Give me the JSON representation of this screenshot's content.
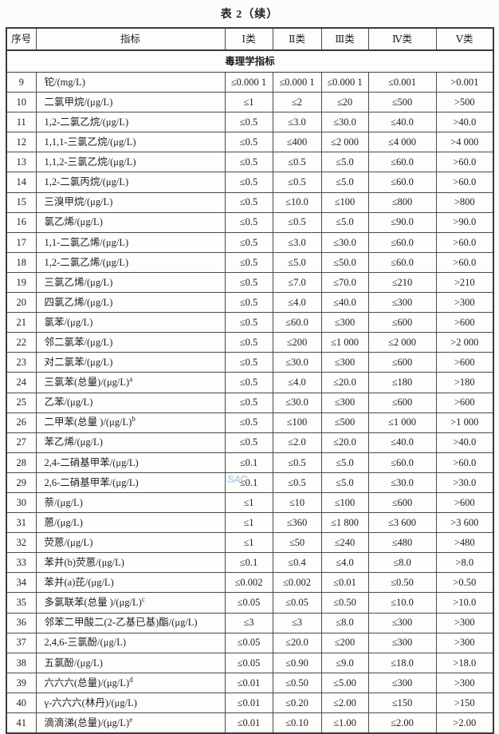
{
  "title": "表 2（续）",
  "watermark": "SAC",
  "colors": {
    "page_background": "#fcfcfb",
    "border": "#3a3a3a",
    "text": "#1e1e1e",
    "watermark_blue": "#8fb6dd"
  },
  "table": {
    "columns": [
      "序号",
      "指标",
      "Ⅰ类",
      "Ⅱ类",
      "Ⅲ类",
      "Ⅳ类",
      "Ⅴ类"
    ],
    "section": "毒理学指标",
    "rows": [
      {
        "no": "9",
        "name": "铊/(mg/L)",
        "sup": "",
        "values": [
          "≤0.000 1",
          "≤0.000 1",
          "≤0.000 1",
          "≤0.001",
          ">0.001"
        ]
      },
      {
        "no": "10",
        "name": "二氯甲烷/(μg/L)",
        "sup": "",
        "values": [
          "≤1",
          "≤2",
          "≤20",
          "≤500",
          ">500"
        ]
      },
      {
        "no": "11",
        "name": "1,2-二氯乙烷/(μg/L)",
        "sup": "",
        "values": [
          "≤0.5",
          "≤3.0",
          "≤30.0",
          "≤40.0",
          ">40.0"
        ]
      },
      {
        "no": "12",
        "name": "1,1,1-三氯乙烷/(μg/L)",
        "sup": "",
        "values": [
          "≤0.5",
          "≤400",
          "≤2 000",
          "≤4 000",
          ">4 000"
        ]
      },
      {
        "no": "13",
        "name": "1,1,2-三氯乙烷/(μg/L)",
        "sup": "",
        "values": [
          "≤0.5",
          "≤0.5",
          "≤5.0",
          "≤60.0",
          ">60.0"
        ]
      },
      {
        "no": "14",
        "name": "1,2-二氯丙烷/(μg/L)",
        "sup": "",
        "values": [
          "≤0.5",
          "≤0.5",
          "≤5.0",
          "≤60.0",
          ">60.0"
        ]
      },
      {
        "no": "15",
        "name": "三溴甲烷/(μg/L)",
        "sup": "",
        "values": [
          "≤0.5",
          "≤10.0",
          "≤100",
          "≤800",
          ">800"
        ]
      },
      {
        "no": "16",
        "name": "氯乙烯/(μg/L)",
        "sup": "",
        "values": [
          "≤0.5",
          "≤0.5",
          "≤5.0",
          "≤90.0",
          ">90.0"
        ]
      },
      {
        "no": "17",
        "name": "1,1-二氯乙烯/(μg/L)",
        "sup": "",
        "values": [
          "≤0.5",
          "≤3.0",
          "≤30.0",
          "≤60.0",
          ">60.0"
        ]
      },
      {
        "no": "18",
        "name": "1,2-二氯乙烯/(μg/L)",
        "sup": "",
        "values": [
          "≤0.5",
          "≤5.0",
          "≤50.0",
          "≤60.0",
          ">60.0"
        ]
      },
      {
        "no": "19",
        "name": "三氯乙烯/(μg/L)",
        "sup": "",
        "values": [
          "≤0.5",
          "≤7.0",
          "≤70.0",
          "≤210",
          ">210"
        ]
      },
      {
        "no": "20",
        "name": "四氯乙烯/(μg/L)",
        "sup": "",
        "values": [
          "≤0.5",
          "≤4.0",
          "≤40.0",
          "≤300",
          ">300"
        ]
      },
      {
        "no": "21",
        "name": "氯苯/(μg/L)",
        "sup": "",
        "values": [
          "≤0.5",
          "≤60.0",
          "≤300",
          "≤600",
          ">600"
        ]
      },
      {
        "no": "22",
        "name": "邻二氯苯/(μg/L)",
        "sup": "",
        "values": [
          "≤0.5",
          "≤200",
          "≤1 000",
          "≤2 000",
          ">2 000"
        ]
      },
      {
        "no": "23",
        "name": "对二氯苯/(μg/L)",
        "sup": "",
        "values": [
          "≤0.5",
          "≤30.0",
          "≤300",
          "≤600",
          ">600"
        ]
      },
      {
        "no": "24",
        "name": "三氯苯(总量)/(μg/L)",
        "sup": "a",
        "values": [
          "≤0.5",
          "≤4.0",
          "≤20.0",
          "≤180",
          ">180"
        ]
      },
      {
        "no": "25",
        "name": "乙苯/(μg/L)",
        "sup": "",
        "values": [
          "≤0.5",
          "≤30.0",
          "≤300",
          "≤600",
          ">600"
        ]
      },
      {
        "no": "26",
        "name": "二甲苯(总量 )/(μg/L)",
        "sup": "b",
        "values": [
          "≤0.5",
          "≤100",
          "≤500",
          "≤1 000",
          ">1 000"
        ]
      },
      {
        "no": "27",
        "name": "苯乙烯/(μg/L)",
        "sup": "",
        "values": [
          "≤0.5",
          "≤2.0",
          "≤20.0",
          "≤40.0",
          ">40.0"
        ]
      },
      {
        "no": "28",
        "name": "2,4-二硝基甲苯/(μg/L)",
        "sup": "",
        "values": [
          "≤0.1",
          "≤0.5",
          "≤5.0",
          "≤60.0",
          ">60.0"
        ]
      },
      {
        "no": "29",
        "name": "2,6-二硝基甲苯/(μg/L)",
        "sup": "",
        "values": [
          "≤0.1",
          "≤0.5",
          "≤5.0",
          "≤30.0",
          ">30.0"
        ]
      },
      {
        "no": "30",
        "name": "萘/(μg/L)",
        "sup": "",
        "values": [
          "≤1",
          "≤10",
          "≤100",
          "≤600",
          ">600"
        ]
      },
      {
        "no": "31",
        "name": "蒽/(μg/L)",
        "sup": "",
        "values": [
          "≤1",
          "≤360",
          "≤1 800",
          "≤3 600",
          ">3 600"
        ]
      },
      {
        "no": "32",
        "name": "荧蒽/(μg/L)",
        "sup": "",
        "values": [
          "≤1",
          "≤50",
          "≤240",
          "≤480",
          ">480"
        ]
      },
      {
        "no": "33",
        "name": "苯并(b)荧蒽/(μg/L)",
        "sup": "",
        "values": [
          "≤0.1",
          "≤0.4",
          "≤4.0",
          "≤8.0",
          ">8.0"
        ]
      },
      {
        "no": "34",
        "name": "苯并(a)芘/(μg/L)",
        "sup": "",
        "values": [
          "≤0.002",
          "≤0.002",
          "≤0.01",
          "≤0.50",
          ">0.50"
        ]
      },
      {
        "no": "35",
        "name": "多氯联苯(总量 )/(μg/L)",
        "sup": "c",
        "values": [
          "≤0.05",
          "≤0.05",
          "≤0.50",
          "≤10.0",
          ">10.0"
        ]
      },
      {
        "no": "36",
        "name": "邻苯二甲酸二(2-乙基已基)酯/(μg/L)",
        "sup": "",
        "values": [
          "≤3",
          "≤3",
          "≤8.0",
          "≤300",
          ">300"
        ]
      },
      {
        "no": "37",
        "name": "2,4,6-三氯酚/(μg/L)",
        "sup": "",
        "values": [
          "≤0.05",
          "≤20.0",
          "≤200",
          "≤300",
          ">300"
        ]
      },
      {
        "no": "38",
        "name": "五氯酚/(μg/L)",
        "sup": "",
        "values": [
          "≤0.05",
          "≤0.90",
          "≤9.0",
          "≤18.0",
          ">18.0"
        ]
      },
      {
        "no": "39",
        "name": "六六六(总量)/(μg/L)",
        "sup": "d",
        "values": [
          "≤0.01",
          "≤0.50",
          "≤5.00",
          "≤300",
          ">300"
        ]
      },
      {
        "no": "40",
        "name": "γ-六六六(林丹)/(μg/L)",
        "sup": "",
        "values": [
          "≤0.01",
          "≤0.20",
          "≤2.00",
          "≤150",
          ">150"
        ]
      },
      {
        "no": "41",
        "name": "滴滴涕(总量)/(μg/L)",
        "sup": "e",
        "values": [
          "≤0.01",
          "≤0.10",
          "≤1.00",
          "≤2.00",
          ">2.00"
        ]
      }
    ]
  }
}
